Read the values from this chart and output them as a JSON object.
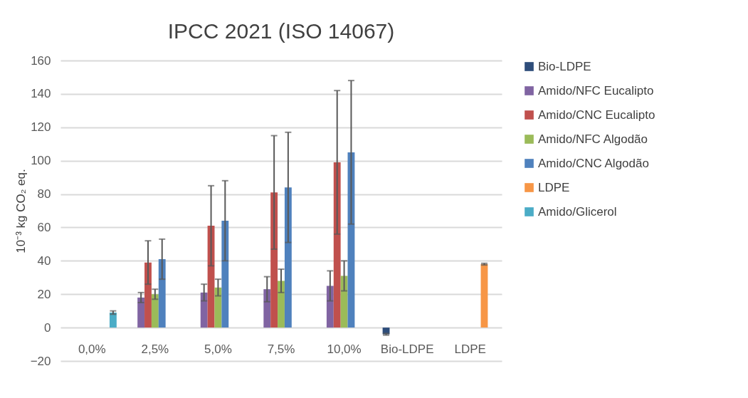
{
  "chart_data": {
    "type": "bar",
    "title": "IPCC 2021 (ISO 14067)",
    "ylabel": "10⁻³ kg CO₂ eq.",
    "categories": [
      "0,0%",
      "2,5%",
      "5,0%",
      "7,5%",
      "10,0%",
      "Bio-LDPE",
      "LDPE"
    ],
    "series": [
      {
        "name": "Bio-LDPE",
        "color": "#2e4d7a",
        "values": [
          null,
          null,
          null,
          null,
          null,
          -4,
          null
        ],
        "errors": [
          null,
          null,
          null,
          null,
          null,
          0.5,
          null
        ]
      },
      {
        "name": "Amido/NFC Eucalipto",
        "color": "#8064a2",
        "values": [
          null,
          18,
          21,
          23,
          25,
          null,
          null
        ],
        "errors": [
          null,
          3,
          5,
          7.5,
          9,
          null,
          null
        ]
      },
      {
        "name": "Amido/CNC Eucalipto",
        "color": "#c0504d",
        "values": [
          null,
          39,
          61,
          81,
          99,
          null,
          null
        ],
        "errors": [
          null,
          13,
          24,
          34,
          43,
          null,
          null
        ]
      },
      {
        "name": "Amido/NFC Algodão",
        "color": "#9bbb59",
        "values": [
          null,
          20,
          24,
          28,
          31,
          null,
          null
        ],
        "errors": [
          null,
          3,
          5,
          7,
          9,
          null,
          null
        ]
      },
      {
        "name": "Amido/CNC Algodão",
        "color": "#4f81bd",
        "values": [
          null,
          41,
          64,
          84,
          105,
          null,
          null
        ],
        "errors": [
          null,
          12,
          24,
          33,
          43,
          null,
          null
        ]
      },
      {
        "name": "LDPE",
        "color": "#f79646",
        "values": [
          null,
          null,
          null,
          null,
          null,
          null,
          38
        ],
        "errors": [
          null,
          null,
          null,
          null,
          null,
          null,
          0.5
        ]
      },
      {
        "name": "Amido/Glicerol",
        "color": "#4bacc6",
        "values": [
          9,
          null,
          null,
          null,
          null,
          null,
          null
        ],
        "errors": [
          1,
          null,
          null,
          null,
          null,
          null,
          null
        ]
      }
    ],
    "ylim": [
      -20,
      160
    ],
    "yticks": [
      -20,
      0,
      20,
      40,
      60,
      80,
      100,
      120,
      140,
      160
    ],
    "grid": "y",
    "legend": "right"
  }
}
